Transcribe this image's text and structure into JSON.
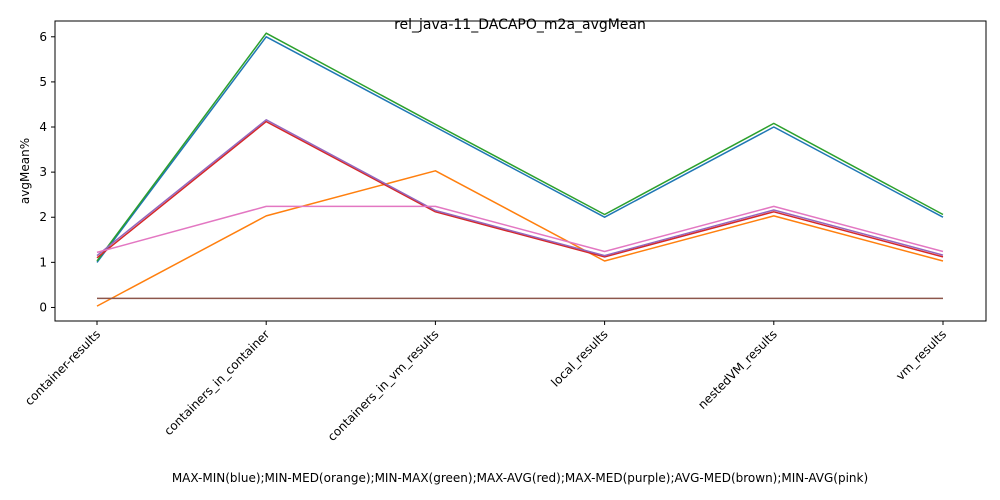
{
  "chart_data": {
    "type": "line",
    "title": "rel_java-11_DACAPO_m2a_avgMean",
    "xlabel": "MAX-MIN(blue);MIN-MED(orange);MIN-MAX(green);MAX-AVG(red);MAX-MED(purple);AVG-MED(brown);MIN-AVG(pink)",
    "ylabel": "avgMean%",
    "categories": [
      "container-results",
      "containers_in_container",
      "containers_in_vm_results",
      "local_results",
      "nestedVM_results",
      "vm_results"
    ],
    "ylim": [
      -0.3,
      6.35
    ],
    "yticks": [
      0,
      1,
      2,
      3,
      4,
      5,
      6
    ],
    "grid": false,
    "legend": "none",
    "series": [
      {
        "color": "#1f77b4",
        "values": [
          1.0,
          6.0,
          4.0,
          2.0,
          4.0,
          2.0
        ]
      },
      {
        "color": "#ff7f0e",
        "values": [
          0.03,
          2.03,
          3.03,
          1.03,
          2.03,
          1.03
        ]
      },
      {
        "color": "#2ca02c",
        "values": [
          1.03,
          6.08,
          4.06,
          2.06,
          4.08,
          2.06
        ]
      },
      {
        "color": "#d62728",
        "values": [
          1.1,
          4.12,
          2.12,
          1.12,
          2.12,
          1.12
        ]
      },
      {
        "color": "#9467bd",
        "values": [
          1.15,
          4.16,
          2.15,
          1.15,
          2.16,
          1.16
        ]
      },
      {
        "color": "#8c564b",
        "values": [
          0.2,
          0.2,
          0.2,
          0.2,
          0.2,
          0.2
        ]
      },
      {
        "color": "#e377c2",
        "values": [
          1.22,
          2.24,
          2.24,
          1.24,
          2.24,
          1.24
        ]
      }
    ]
  }
}
